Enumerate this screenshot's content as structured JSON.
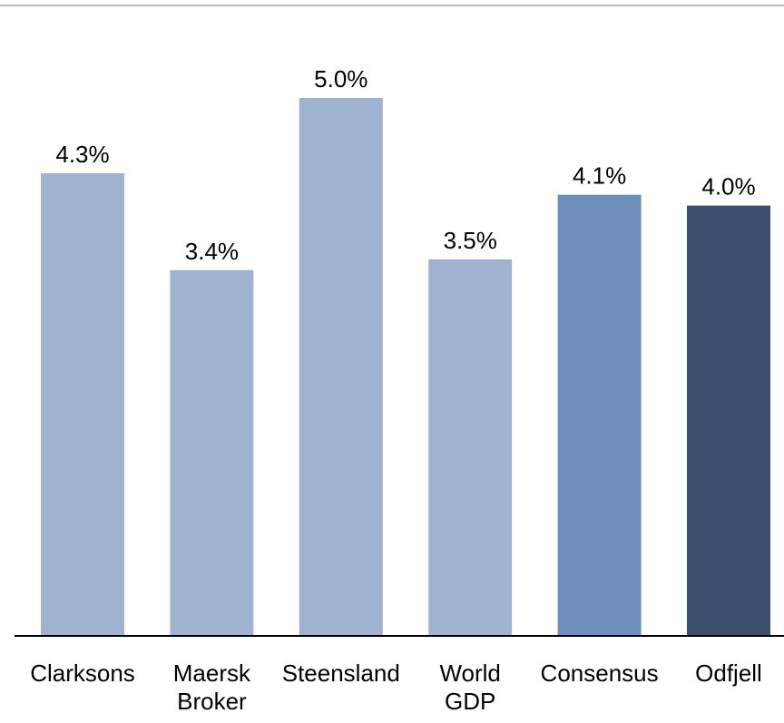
{
  "chart_data": {
    "type": "bar",
    "title": "",
    "xlabel": "",
    "ylabel": "",
    "categories": [
      [
        "Clarksons"
      ],
      [
        "Maersk",
        "Broker"
      ],
      [
        "Steensland"
      ],
      [
        "World",
        "GDP"
      ],
      [
        "Consensus"
      ],
      [
        "Odfjell"
      ]
    ],
    "values": [
      4.3,
      3.4,
      5.0,
      3.5,
      4.1,
      4.0
    ],
    "value_labels": [
      "4.3%",
      "3.4%",
      "5.0%",
      "3.5%",
      "4.1%",
      "4.0%"
    ],
    "ylim": [
      0,
      5.0
    ],
    "grid": false,
    "legend": "none",
    "bar_colors": [
      "#9fb2cf",
      "#9fb2cf",
      "#9fb2cf",
      "#9fb2cf",
      "#6e8fbb",
      "#3b4e6e"
    ],
    "axis_color": "#000000",
    "top_rule_color": "#a6a6a6"
  }
}
